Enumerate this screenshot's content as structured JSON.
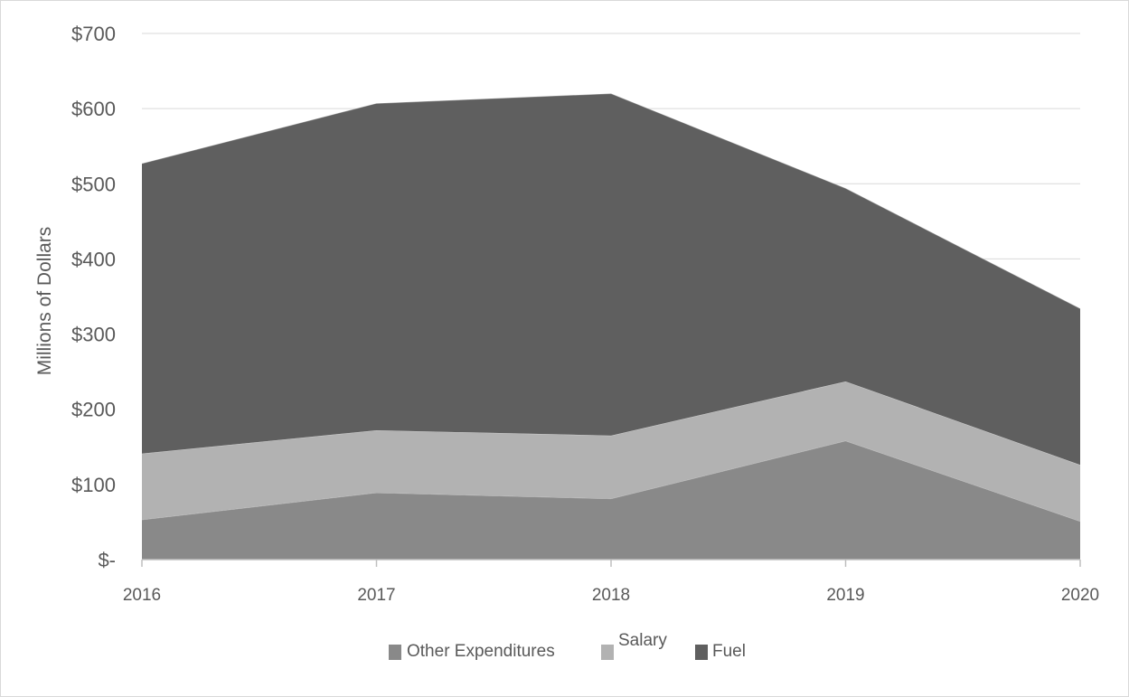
{
  "chart_data": {
    "type": "area",
    "stacked": true,
    "title": "",
    "xlabel": "",
    "ylabel": "Millions of Dollars",
    "categories": [
      "2016",
      "2017",
      "2018",
      "2019",
      "2020"
    ],
    "ylim": [
      0,
      700
    ],
    "yticks": [
      0,
      100,
      200,
      300,
      400,
      500,
      600,
      700
    ],
    "ytick_labels": [
      "$-",
      "$100",
      "$200",
      "$300",
      "$400",
      "$500",
      "$600",
      "$700"
    ],
    "grid": true,
    "legend_position": "bottom",
    "series": [
      {
        "name": "Other Expenditures",
        "color": "#898989",
        "values": [
          53,
          89,
          81,
          158,
          51
        ]
      },
      {
        "name": "Salary",
        "color": "#b2b2b2",
        "values": [
          88,
          83,
          84,
          79,
          75
        ]
      },
      {
        "name": "Fuel",
        "color": "#5f5f5f",
        "values": [
          386,
          435,
          455,
          257,
          208
        ]
      }
    ]
  }
}
